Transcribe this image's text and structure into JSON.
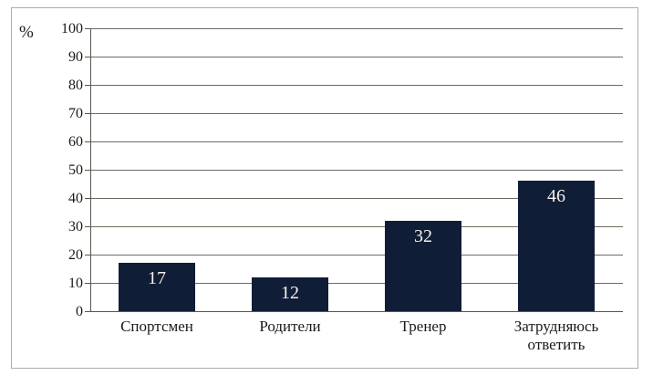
{
  "figure": {
    "background": "#ffffff",
    "frame_color": "#b0aca5"
  },
  "chart_data": {
    "type": "bar",
    "title": "",
    "xlabel": "",
    "ylabel": "%",
    "categories": [
      "Спортсмен",
      "Родители",
      "Тренер",
      "Затрудняюсь ответить"
    ],
    "values": [
      17,
      12,
      32,
      46
    ],
    "value_labels": [
      "17",
      "12",
      "32",
      "46"
    ],
    "ylim": [
      0,
      100
    ],
    "ytick_step": 10,
    "ytick_labels": [
      "0",
      "10",
      "20",
      "30",
      "40",
      "50",
      "60",
      "70",
      "80",
      "90",
      "100"
    ],
    "grid": "horizontal",
    "legend": "none",
    "colors": {
      "bar": "#101d37",
      "bar_value_text": "#f5f2ea",
      "gridline": "#6f6b62",
      "axis": "#5a564e",
      "tick_text": "#1a1a1a",
      "category_text": "#1a1a1a"
    }
  }
}
